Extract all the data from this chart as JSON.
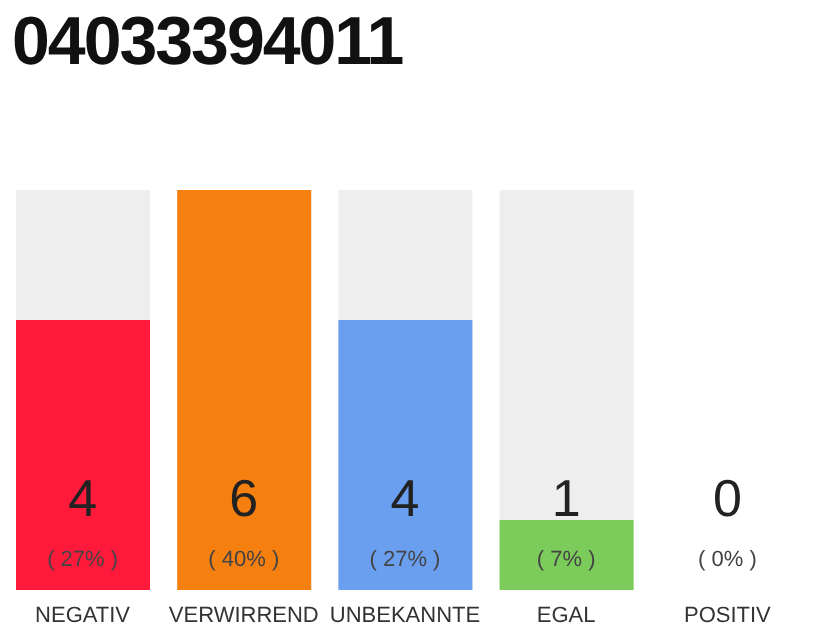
{
  "chart_data": {
    "type": "bar",
    "title": "04033394011",
    "categories": [
      "NEGATIV",
      "VERWIRREND",
      "UNBEKANNTE",
      "EGAL",
      "POSITIV"
    ],
    "values": [
      27,
      40,
      27,
      7,
      0
    ],
    "colors": [
      "#ff1a3c",
      "#f57f0f",
      "#6a9ff0",
      "#7ccc5c",
      "#2e8b57"
    ],
    "value_labels": [
      "( 27% )",
      "( 40% )",
      "( 27% )",
      "( 7% )",
      "( 0% )"
    ],
    "annotations": [
      "4",
      "6",
      "4",
      "1",
      "0"
    ]
  }
}
